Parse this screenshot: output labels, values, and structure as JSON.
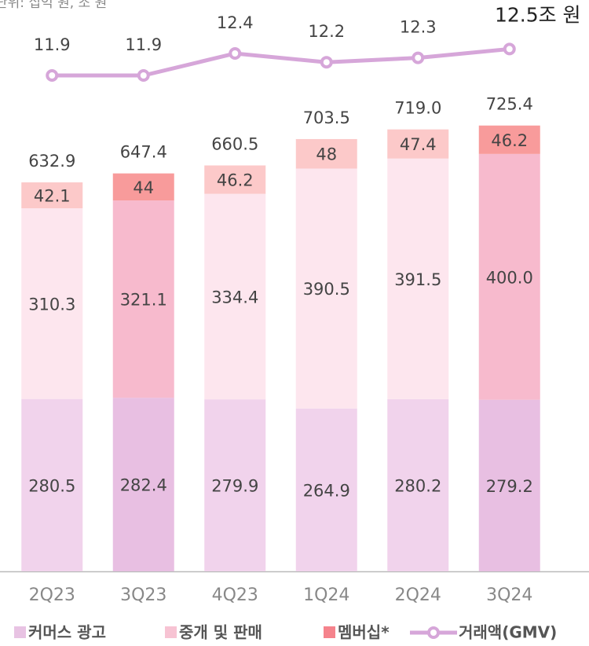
{
  "chart_data": {
    "type": "stacked_bar_line",
    "unit_note": "단위: 십억 원, 조 원",
    "categories": [
      "2Q23",
      "3Q23",
      "4Q23",
      "1Q24",
      "2Q24",
      "3Q24"
    ],
    "series": [
      {
        "name": "커머스 광고",
        "color": "#e8c3e3",
        "colors": [
          "#f1d3ec",
          "#e8bfe2",
          "#f1d3ec",
          "#f1d3ec",
          "#f1d3ec",
          "#e8bfe2"
        ],
        "values": [
          280.5,
          282.4,
          279.9,
          264.9,
          280.2,
          279.2
        ]
      },
      {
        "name": "중개 및 판매",
        "color": "#f7c3d3",
        "colors": [
          "#fde6ee",
          "#f7bacd",
          "#fde6ee",
          "#fde6ee",
          "#fde6ee",
          "#f7bacd"
        ],
        "values": [
          310.3,
          321.1,
          334.4,
          390.5,
          391.5,
          400.0
        ],
        "value_labels": [
          "310.3",
          "321.1",
          "334.4",
          "390.5",
          "391.5",
          "400.0"
        ]
      },
      {
        "name": "멤버십*",
        "color": "#f5838c",
        "colors": [
          "#fcc9c9",
          "#f89b9b",
          "#fcc9c9",
          "#fcc9c9",
          "#fcc9c9",
          "#f89b9b"
        ],
        "values": [
          42.1,
          44.0,
          46.2,
          48.0,
          47.4,
          46.2
        ]
      }
    ],
    "totals": [
      632.9,
      647.4,
      660.5,
      703.5,
      719.0,
      725.4
    ],
    "totals_labels": [
      "632.9",
      "647.4",
      "660.5",
      "703.5",
      "719.0",
      "725.4"
    ],
    "line": {
      "name": "거래액(GMV)",
      "color": "#d6a6d9",
      "values": [
        11.9,
        11.9,
        12.4,
        12.2,
        12.3,
        12.5
      ],
      "value_labels": [
        "11.9",
        "11.9",
        "12.4",
        "12.2",
        "12.3",
        "12.5조 원"
      ]
    }
  }
}
